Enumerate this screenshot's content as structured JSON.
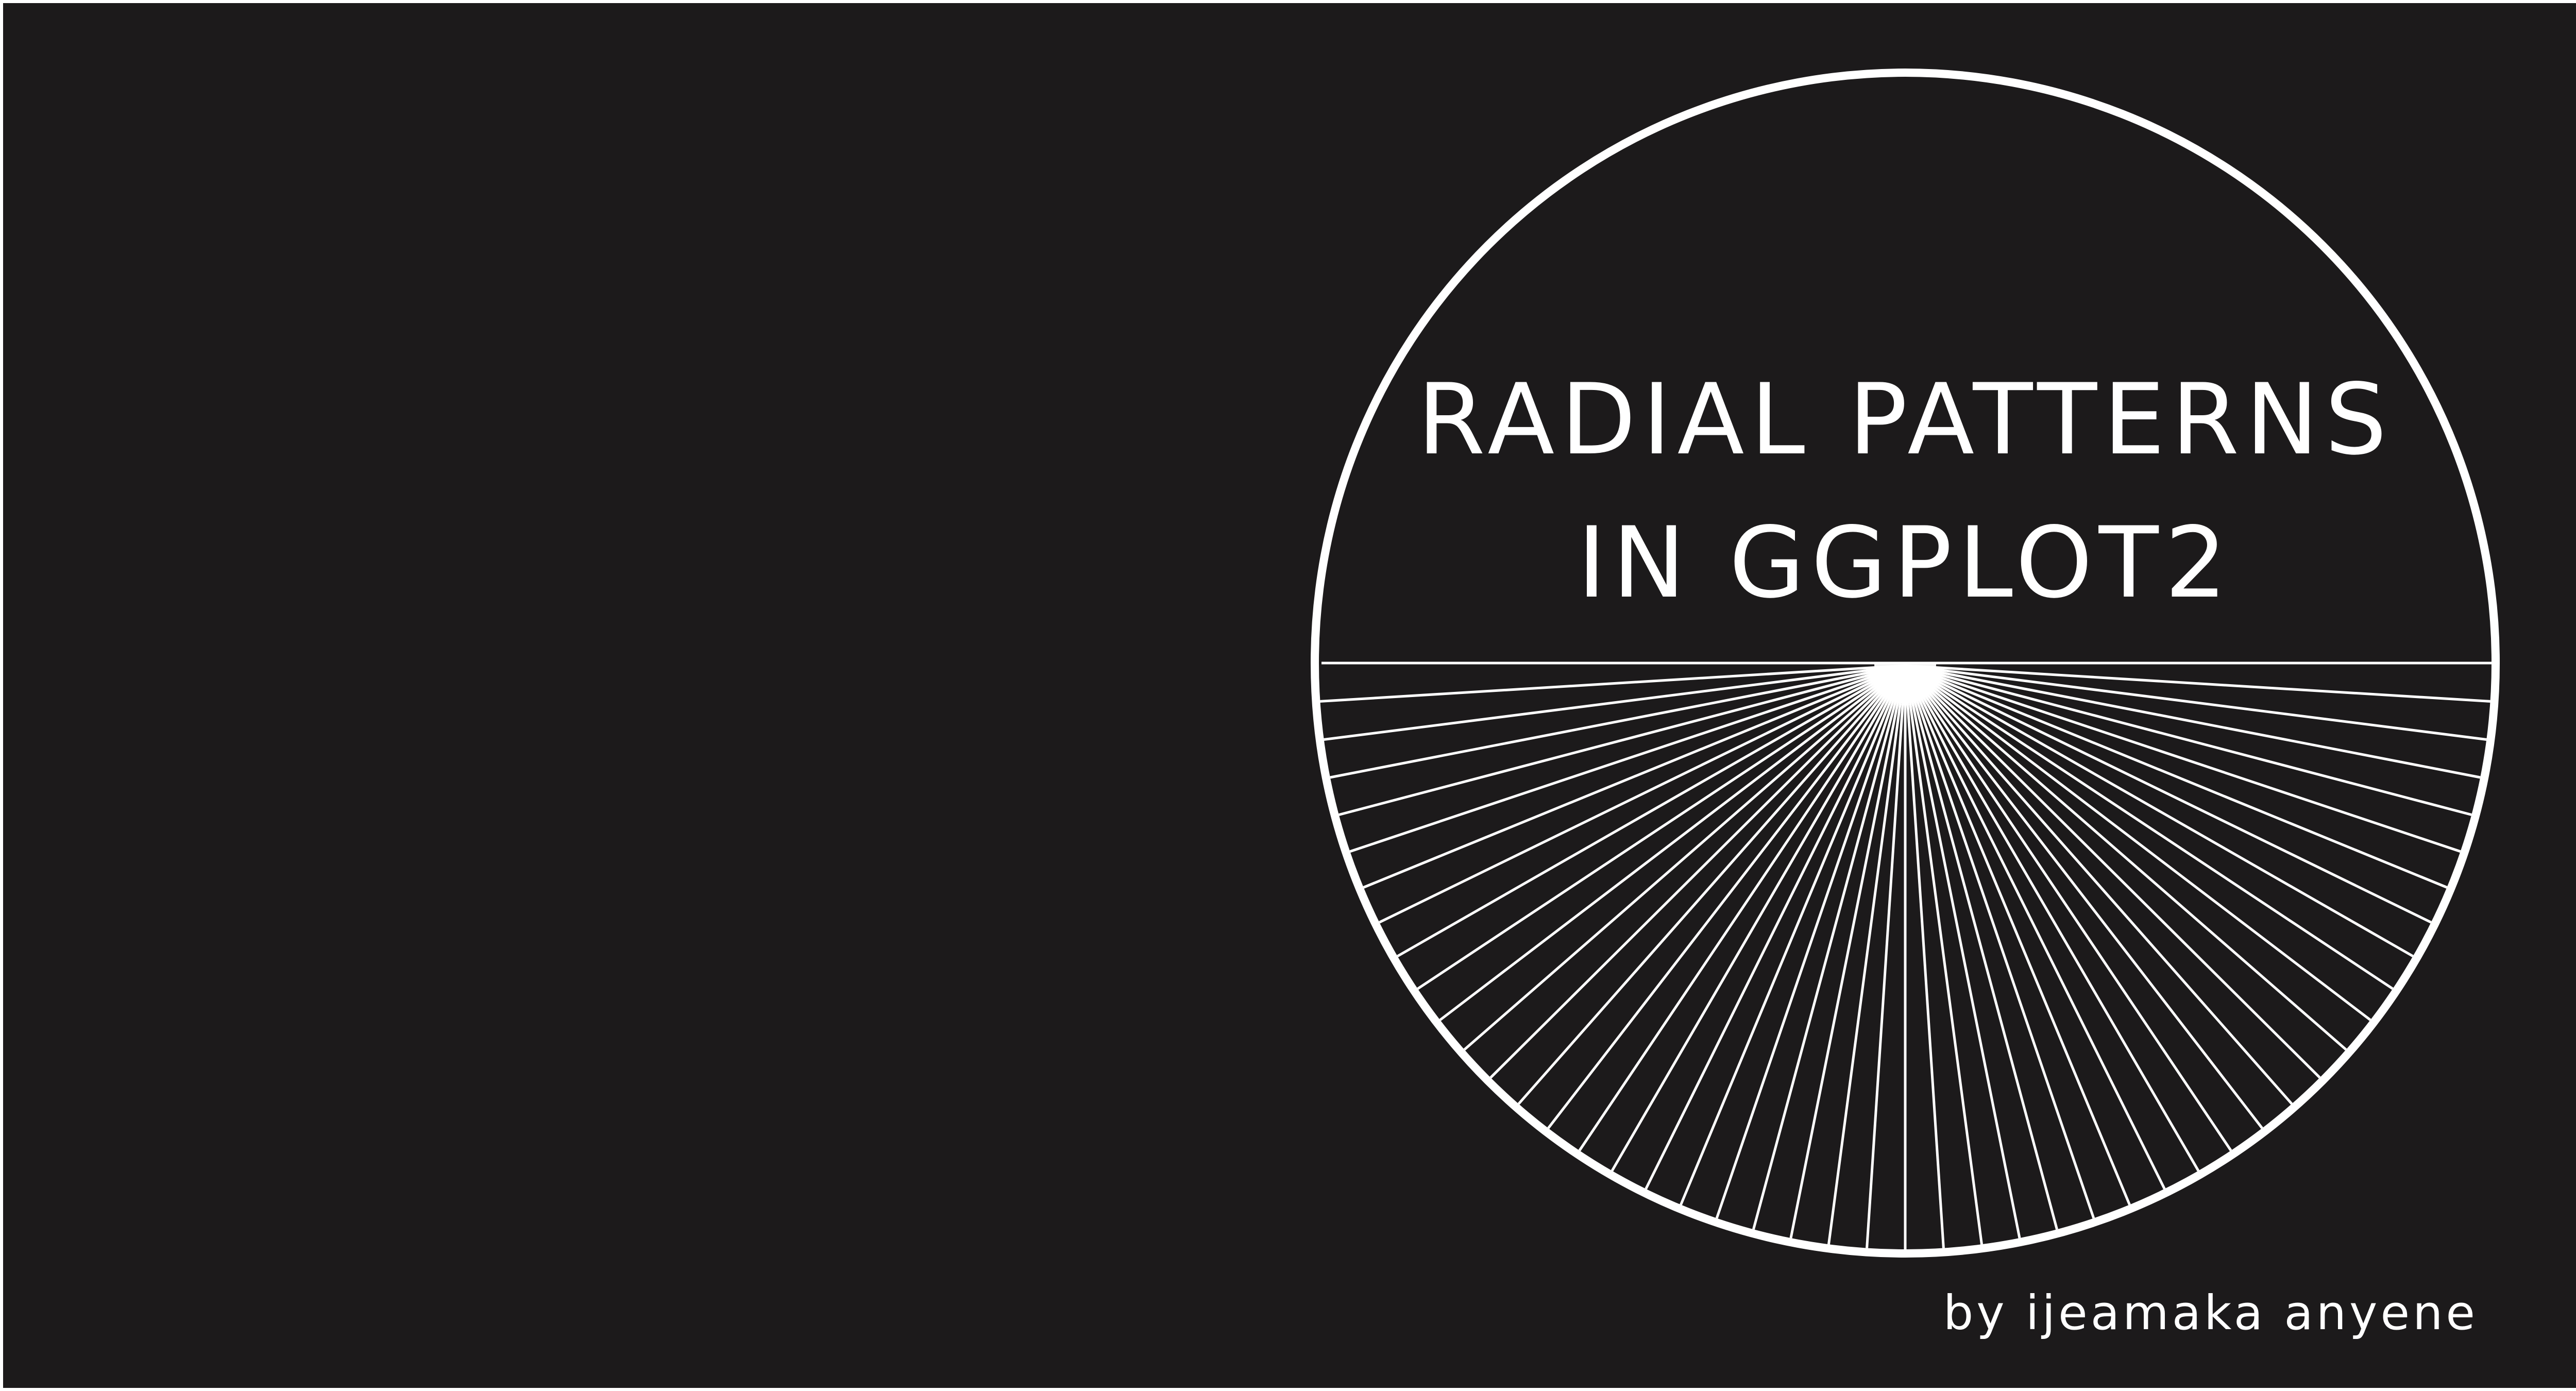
{
  "cover": {
    "title_line1": "RADIAL PATTERNS",
    "title_line2": "IN GGPLOT2",
    "byline": "by ijeamaka anyene"
  },
  "colors": {
    "background": "#1c1a1b",
    "foreground": "#ffffff",
    "frame": "#ffffff"
  },
  "graphic": {
    "ray_count": 49,
    "ray_start_deg": 180,
    "ray_end_deg": 360
  }
}
